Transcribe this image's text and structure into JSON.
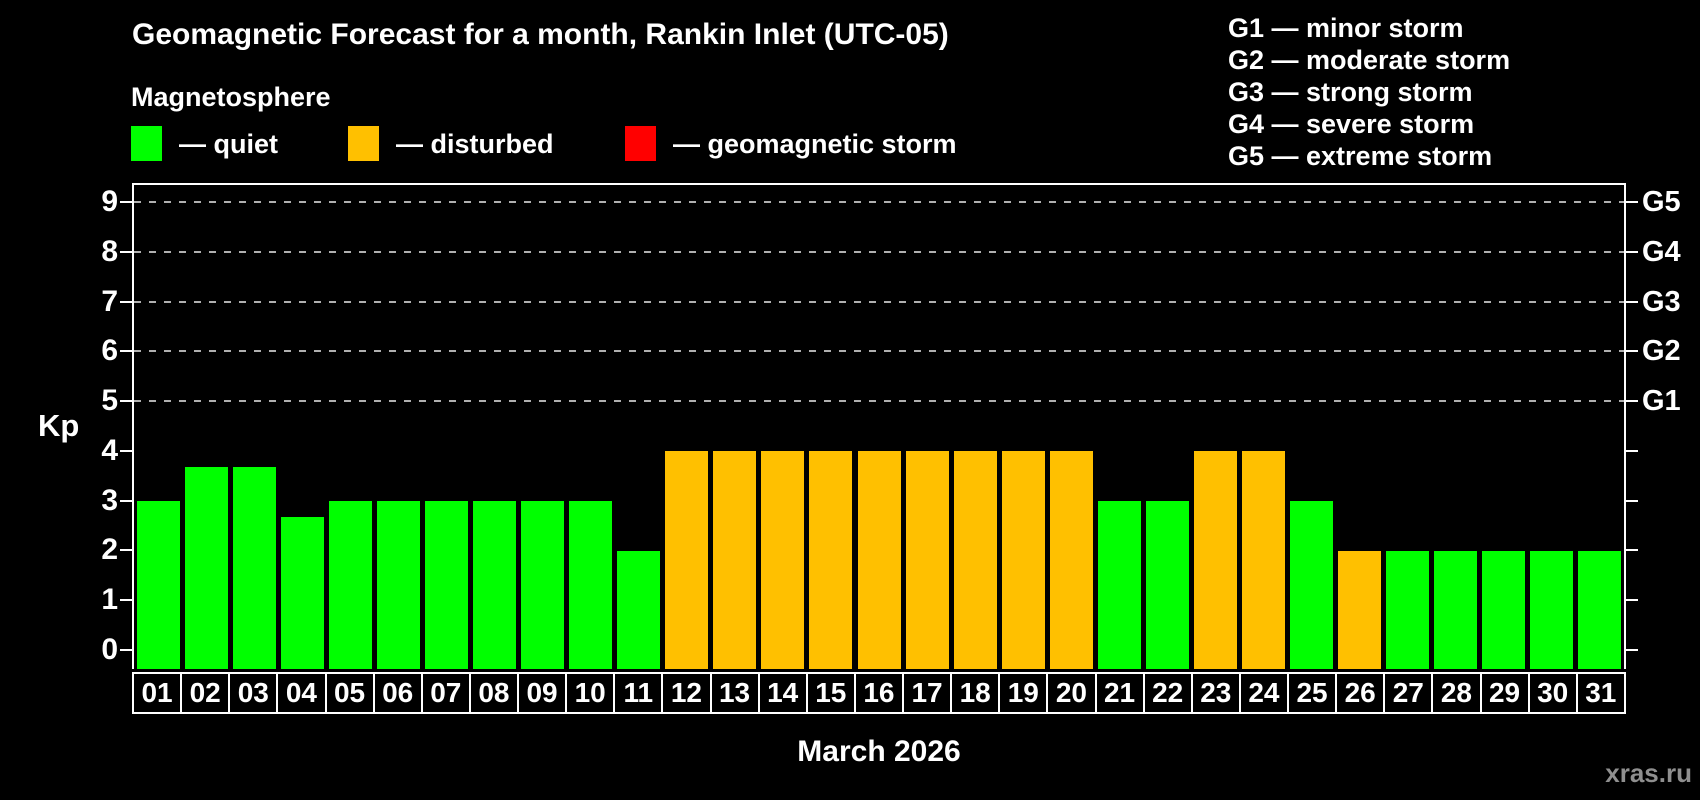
{
  "header": {
    "title": "Geomagnetic Forecast for a month, Rankin Inlet (UTC-05)",
    "subtitle": "Magnetosphere"
  },
  "legend": {
    "items": [
      {
        "key": "quiet",
        "color": "#00ff00",
        "label": "— quiet"
      },
      {
        "key": "disturbed",
        "color": "#ffc000",
        "label": "— disturbed"
      },
      {
        "key": "storm",
        "color": "#ff0000",
        "label": "— geomagnetic storm"
      }
    ]
  },
  "g_legend": {
    "lines": [
      "G1 — minor storm",
      "G2 — moderate storm",
      "G3 — strong storm",
      "G4 — severe storm",
      "G5 — extreme storm"
    ]
  },
  "watermark": "xras.ru",
  "chart_data": {
    "type": "bar",
    "title": "Geomagnetic Forecast for a month, Rankin Inlet (UTC-05)",
    "xlabel": "March 2026",
    "ylabel": "Kp",
    "ylim": [
      -0.38,
      9.34
    ],
    "yticks": [
      0,
      1,
      2,
      3,
      4,
      5,
      6,
      7,
      8,
      9
    ],
    "gridlines": [
      5,
      6,
      7,
      8,
      9
    ],
    "grid": "dashed, only at G-storm levels Kp 5-9",
    "legend_position": "top-left",
    "right_axis_labels": [
      {
        "kp": 5,
        "label": "G1"
      },
      {
        "kp": 6,
        "label": "G2"
      },
      {
        "kp": 7,
        "label": "G3"
      },
      {
        "kp": 8,
        "label": "G4"
      },
      {
        "kp": 9,
        "label": "G5"
      }
    ],
    "series_colors": {
      "quiet": "#00ff00",
      "disturbed": "#ffc000",
      "storm": "#ff0000"
    },
    "categories": [
      "01",
      "02",
      "03",
      "04",
      "05",
      "06",
      "07",
      "08",
      "09",
      "10",
      "11",
      "12",
      "13",
      "14",
      "15",
      "16",
      "17",
      "18",
      "19",
      "20",
      "21",
      "22",
      "23",
      "24",
      "25",
      "26",
      "27",
      "28",
      "29",
      "30",
      "31"
    ],
    "values": [
      3,
      3.67,
      3.67,
      2.67,
      3,
      3,
      3,
      3,
      3,
      3,
      2,
      4,
      4,
      4,
      4,
      4,
      4,
      4,
      4,
      4,
      3,
      3,
      4,
      4,
      3,
      2,
      2,
      2,
      2,
      2,
      2
    ],
    "statuses": [
      "quiet",
      "quiet",
      "quiet",
      "quiet",
      "quiet",
      "quiet",
      "quiet",
      "quiet",
      "quiet",
      "quiet",
      "quiet",
      "disturbed",
      "disturbed",
      "disturbed",
      "disturbed",
      "disturbed",
      "disturbed",
      "disturbed",
      "disturbed",
      "disturbed",
      "quiet",
      "quiet",
      "disturbed",
      "disturbed",
      "quiet",
      "disturbed",
      "quiet",
      "quiet",
      "quiet",
      "quiet",
      "quiet"
    ]
  }
}
